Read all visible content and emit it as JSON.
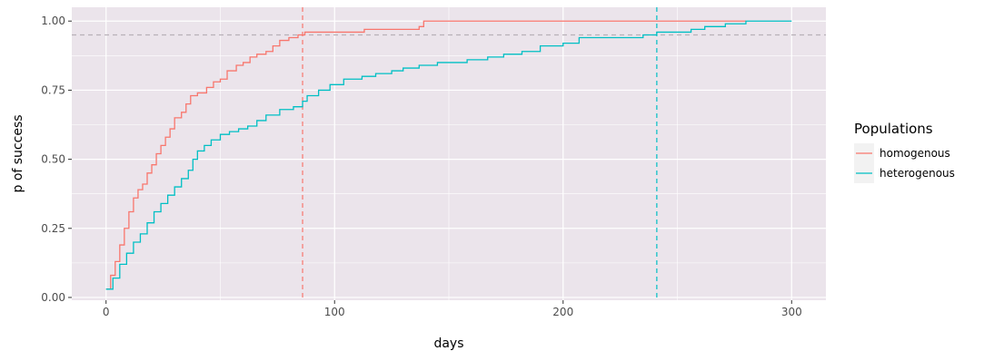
{
  "chart_data": {
    "type": "line",
    "step": true,
    "xlabel": "days",
    "ylabel": "p of success",
    "xlim": [
      -15,
      315
    ],
    "ylim": [
      -0.01,
      1.05
    ],
    "x_ticks": [
      0,
      100,
      200,
      300
    ],
    "x_minor_ticks": [
      50,
      150,
      250
    ],
    "y_ticks": [
      0.0,
      0.25,
      0.5,
      0.75,
      1.0
    ],
    "y_tick_labels": [
      "0.00",
      "0.25",
      "0.50",
      "0.75",
      "1.00"
    ],
    "y_minor_ticks": [
      0.125,
      0.375,
      0.625,
      0.875
    ],
    "background": "#EBE4EB",
    "grid": true,
    "legend": {
      "title": "Populations",
      "position": "right"
    },
    "reference_lines": [
      {
        "orientation": "horizontal",
        "value": 0.95,
        "color": "#B8B0B8",
        "dash": true
      },
      {
        "orientation": "vertical",
        "value": 86,
        "color": "#F8766D",
        "dash": true
      },
      {
        "orientation": "vertical",
        "value": 241,
        "color": "#00BFC4",
        "dash": true
      }
    ],
    "series": [
      {
        "name": "homogenous",
        "color": "#F8766D",
        "points": [
          [
            0,
            0.03
          ],
          [
            2,
            0.08
          ],
          [
            4,
            0.13
          ],
          [
            6,
            0.19
          ],
          [
            8,
            0.25
          ],
          [
            10,
            0.31
          ],
          [
            12,
            0.36
          ],
          [
            14,
            0.39
          ],
          [
            16,
            0.41
          ],
          [
            18,
            0.45
          ],
          [
            20,
            0.48
          ],
          [
            22,
            0.52
          ],
          [
            24,
            0.55
          ],
          [
            26,
            0.58
          ],
          [
            28,
            0.61
          ],
          [
            30,
            0.65
          ],
          [
            33,
            0.67
          ],
          [
            35,
            0.7
          ],
          [
            37,
            0.73
          ],
          [
            40,
            0.74
          ],
          [
            44,
            0.76
          ],
          [
            47,
            0.78
          ],
          [
            50,
            0.79
          ],
          [
            53,
            0.82
          ],
          [
            57,
            0.84
          ],
          [
            60,
            0.85
          ],
          [
            63,
            0.87
          ],
          [
            66,
            0.88
          ],
          [
            70,
            0.89
          ],
          [
            73,
            0.91
          ],
          [
            76,
            0.93
          ],
          [
            80,
            0.94
          ],
          [
            84,
            0.95
          ],
          [
            87,
            0.96
          ],
          [
            100,
            0.96
          ],
          [
            113,
            0.97
          ],
          [
            137,
            0.98
          ],
          [
            139,
            1.0
          ],
          [
            280,
            1.0
          ]
        ]
      },
      {
        "name": "heterogenous",
        "color": "#00BFC4",
        "points": [
          [
            0,
            0.03
          ],
          [
            3,
            0.07
          ],
          [
            6,
            0.12
          ],
          [
            9,
            0.16
          ],
          [
            12,
            0.2
          ],
          [
            15,
            0.23
          ],
          [
            18,
            0.27
          ],
          [
            21,
            0.31
          ],
          [
            24,
            0.34
          ],
          [
            27,
            0.37
          ],
          [
            30,
            0.4
          ],
          [
            33,
            0.43
          ],
          [
            36,
            0.46
          ],
          [
            38,
            0.5
          ],
          [
            40,
            0.53
          ],
          [
            43,
            0.55
          ],
          [
            46,
            0.57
          ],
          [
            50,
            0.59
          ],
          [
            54,
            0.6
          ],
          [
            58,
            0.61
          ],
          [
            62,
            0.62
          ],
          [
            66,
            0.64
          ],
          [
            70,
            0.66
          ],
          [
            76,
            0.68
          ],
          [
            82,
            0.69
          ],
          [
            86,
            0.71
          ],
          [
            88,
            0.73
          ],
          [
            93,
            0.75
          ],
          [
            98,
            0.77
          ],
          [
            104,
            0.79
          ],
          [
            112,
            0.8
          ],
          [
            118,
            0.81
          ],
          [
            125,
            0.82
          ],
          [
            130,
            0.83
          ],
          [
            137,
            0.84
          ],
          [
            145,
            0.85
          ],
          [
            158,
            0.86
          ],
          [
            167,
            0.87
          ],
          [
            174,
            0.88
          ],
          [
            182,
            0.89
          ],
          [
            190,
            0.91
          ],
          [
            200,
            0.92
          ],
          [
            207,
            0.94
          ],
          [
            220,
            0.94
          ],
          [
            235,
            0.95
          ],
          [
            241,
            0.96
          ],
          [
            250,
            0.96
          ],
          [
            256,
            0.97
          ],
          [
            262,
            0.98
          ],
          [
            271,
            0.99
          ],
          [
            280,
            1.0
          ],
          [
            300,
            1.0
          ]
        ]
      }
    ]
  }
}
